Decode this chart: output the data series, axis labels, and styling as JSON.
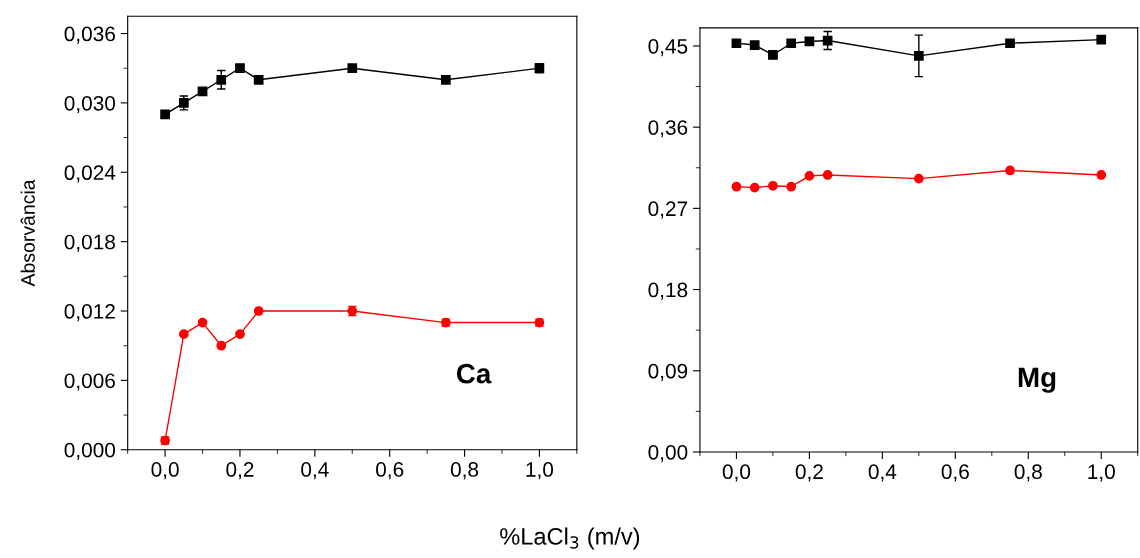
{
  "chart_data": [
    {
      "type": "line",
      "ylabel": "Absorvância",
      "xlabel": "%LaCl$_{3}$ (m/v)",
      "annotations": [
        "Ca"
      ],
      "xlim": [
        -0.1,
        1.1
      ],
      "xticks": [
        {
          "value": 0,
          "label": "0,0"
        },
        {
          "value": 0.2,
          "label": "0,2"
        },
        {
          "value": 0.4,
          "label": "0,4"
        },
        {
          "value": 0.6,
          "label": "0,6"
        },
        {
          "value": 0.8,
          "label": "0,8"
        },
        {
          "value": 1.0,
          "label": "1,0"
        }
      ],
      "ylim": [
        0,
        0.0375
      ],
      "yticks": [
        {
          "value": 0,
          "label": "0,000"
        },
        {
          "value": 0.006,
          "label": "0,006"
        },
        {
          "value": 0.012,
          "label": "0,012"
        },
        {
          "value": 0.018,
          "label": "0,018"
        },
        {
          "value": 0.024,
          "label": "0,024"
        },
        {
          "value": 0.03,
          "label": "0,030"
        },
        {
          "value": 0.036,
          "label": "0,036"
        }
      ],
      "x": [
        0,
        0.05,
        0.1,
        0.15,
        0.2,
        0.25,
        0.5,
        0.75,
        1.0
      ],
      "series": [
        {
          "color": "#000000",
          "marker": "square",
          "values": [
            0.029,
            0.03,
            0.031,
            0.032,
            0.033,
            0.032,
            0.033,
            0.032,
            0.033
          ],
          "errors": [
            null,
            0.0006,
            null,
            0.0008,
            null,
            0.0003,
            0.0003,
            0.0003,
            0.0004
          ]
        },
        {
          "color": "#ff0000",
          "marker": "circle",
          "values": [
            0.0008,
            0.01,
            0.011,
            0.009,
            0.01,
            0.012,
            0.012,
            0.011,
            0.011
          ],
          "errors": [
            0.0003,
            null,
            null,
            null,
            null,
            null,
            0.0004,
            0.0003,
            0.0003
          ]
        }
      ]
    },
    {
      "type": "line",
      "annotations": [
        "Mg"
      ],
      "xlim": [
        -0.1,
        1.1
      ],
      "xticks": [
        {
          "value": 0,
          "label": "0,0"
        },
        {
          "value": 0.2,
          "label": "0,2"
        },
        {
          "value": 0.4,
          "label": "0,4"
        },
        {
          "value": 0.6,
          "label": "0,6"
        },
        {
          "value": 0.8,
          "label": "0,8"
        },
        {
          "value": 1.0,
          "label": "1,0"
        }
      ],
      "ylim": [
        0,
        0.47
      ],
      "yticks": [
        {
          "value": 0,
          "label": "0,00"
        },
        {
          "value": 0.09,
          "label": "0,09"
        },
        {
          "value": 0.18,
          "label": "0,18"
        },
        {
          "value": 0.27,
          "label": "0,27"
        },
        {
          "value": 0.36,
          "label": "0,36"
        },
        {
          "value": 0.45,
          "label": "0,45"
        }
      ],
      "x": [
        0,
        0.05,
        0.1,
        0.15,
        0.2,
        0.25,
        0.5,
        0.75,
        1.0
      ],
      "series": [
        {
          "color": "#000000",
          "marker": "square",
          "values": [
            0.453,
            0.451,
            0.44,
            0.453,
            0.455,
            0.456,
            0.439,
            0.453,
            0.457
          ],
          "errors": [
            null,
            null,
            null,
            null,
            null,
            0.01,
            0.023,
            null,
            null
          ]
        },
        {
          "color": "#ff0000",
          "marker": "circle",
          "values": [
            0.294,
            0.293,
            0.295,
            0.294,
            0.306,
            0.307,
            0.303,
            0.312,
            0.307
          ]
        }
      ]
    }
  ]
}
